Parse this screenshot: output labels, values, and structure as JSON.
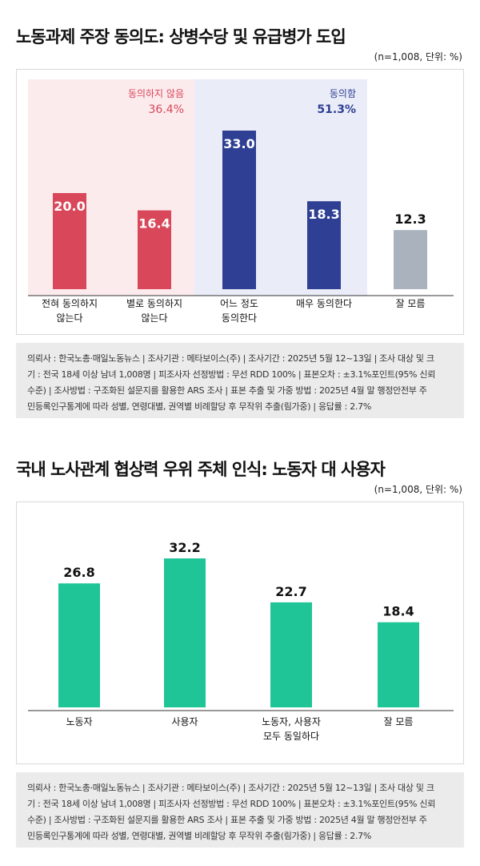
{
  "chart1": {
    "title": "노동과제 주장 동의도: 상병수당 및 유급병가 도입",
    "unit": "(n=1,008, 단위: %)",
    "groups": [
      {
        "label": "동의하지 않음",
        "value": "36.4%",
        "color": "#d9475a"
      },
      {
        "label": "동의함",
        "value": "51.3%",
        "color": "#2e3f94"
      }
    ],
    "note_lines": [
      "의뢰사 : 한국노총·매일노동뉴스 | 조사기관 : 메타보이스(주) | 조사기간 : 2025년 5월 12~13일 | 조사 대상 및 크",
      "기 : 전국 18세 이상 남녀 1,008명 | 피조사자 선정방법 : 무선 RDD 100% | 표본오차 : ±3.1%포인트(95% 신뢰",
      "수준) | 조사방법 : 구조화된 설문지를 활용한 ARS 조사 | 표본 추출 및 가중 방법 : 2025년 4월 말 행정안전부 주",
      "민등록인구통계에 따라 성별, 연령대별, 권역별 비례할당 후 무작위 추출(림가중) | 응답률 : 2.7%"
    ]
  },
  "chart2": {
    "title": "국내 노사관계 협상력 우위 주체 인식: 노동자 대 사용자",
    "unit": "(n=1,008, 단위: %)",
    "note_lines": [
      "의뢰사 : 한국노총·매일노동뉴스 | 조사기관 : 메타보이스(주) | 조사기간 : 2025년 5월 12~13일 | 조사 대상 및 크",
      "기 : 전국 18세 이상 남녀 1,008명 | 피조사자 선정방법 : 무선 RDD 100% | 표본오차 : ±3.1%포인트(95% 신뢰",
      "수준) | 조사방법 : 구조화된 설문지를 활용한 ARS 조사 | 표본 추출 및 가중 방법 : 2025년 4월 말 행정안전부 주",
      "민등록인구통계에 따라 성별, 연령대별, 권역별 비례할당 후 무작위 추출(림가중) | 응답률 : 2.7%"
    ]
  },
  "chart_data": [
    {
      "type": "bar",
      "title": "노동과제 주장 동의도: 상병수당 및 유급병가 도입",
      "categories": [
        [
          "전혀 동의하지",
          "않는다"
        ],
        [
          "별로 동의하지",
          "않는다"
        ],
        [
          "어느 정도",
          "동의한다"
        ],
        [
          "매우 동의한다"
        ],
        [
          "잘 모름"
        ]
      ],
      "values": [
        20.0,
        16.4,
        33.0,
        18.3,
        12.3
      ],
      "labels": [
        "20.0",
        "16.4",
        "33.0",
        "18.3",
        "12.3"
      ],
      "colors": [
        "#d9475a",
        "#d9475a",
        "#2e3f94",
        "#2e3f94",
        "#aab3bd"
      ],
      "ylim": [
        0,
        40
      ],
      "grid": false
    },
    {
      "type": "bar",
      "title": "국내 노사관계 협상력 우위 주체 인식: 노동자 대 사용자",
      "categories": [
        [
          "노동자"
        ],
        [
          "사용자"
        ],
        [
          "노동자, 사용자",
          "모두 동일하다"
        ],
        [
          "잘 모름"
        ]
      ],
      "values": [
        26.8,
        32.2,
        22.7,
        18.4
      ],
      "labels": [
        "26.8",
        "32.2",
        "22.7",
        "18.4"
      ],
      "colors": [
        "#1fc497",
        "#1fc497",
        "#1fc497",
        "#1fc497"
      ],
      "ylim": [
        0,
        40
      ],
      "grid": false
    }
  ]
}
